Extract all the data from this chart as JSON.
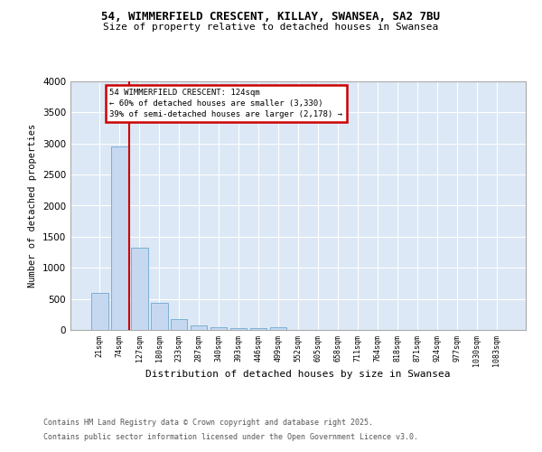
{
  "title1": "54, WIMMERFIELD CRESCENT, KILLAY, SWANSEA, SA2 7BU",
  "title2": "Size of property relative to detached houses in Swansea",
  "xlabel": "Distribution of detached houses by size in Swansea",
  "ylabel": "Number of detached properties",
  "bin_labels": [
    "21sqm",
    "74sqm",
    "127sqm",
    "180sqm",
    "233sqm",
    "287sqm",
    "340sqm",
    "393sqm",
    "446sqm",
    "499sqm",
    "552sqm",
    "605sqm",
    "658sqm",
    "711sqm",
    "764sqm",
    "818sqm",
    "871sqm",
    "924sqm",
    "977sqm",
    "1030sqm",
    "1083sqm"
  ],
  "bar_heights": [
    600,
    2950,
    1330,
    430,
    170,
    80,
    50,
    30,
    25,
    50,
    0,
    0,
    0,
    0,
    0,
    0,
    0,
    0,
    0,
    0,
    0
  ],
  "bar_color": "#c5d8f0",
  "bar_edge_color": "#7bafd4",
  "ylim": [
    0,
    4000
  ],
  "yticks": [
    0,
    500,
    1000,
    1500,
    2000,
    2500,
    3000,
    3500,
    4000
  ],
  "property_line_color": "#cc0000",
  "property_line_x": 1.5,
  "annotation_line1": "54 WIMMERFIELD CRESCENT: 124sqm",
  "annotation_line2": "← 60% of detached houses are smaller (3,330)",
  "annotation_line3": "39% of semi-detached houses are larger (2,178) →",
  "annotation_box_edgecolor": "#cc0000",
  "annotation_box_facecolor": "#ffffff",
  "footer1": "Contains HM Land Registry data © Crown copyright and database right 2025.",
  "footer2": "Contains public sector information licensed under the Open Government Licence v3.0.",
  "plot_bg_color": "#dce8f5",
  "fig_bg_color": "#ffffff",
  "grid_color": "#ffffff",
  "spine_color": "#aaaaaa",
  "ylabel_color": "#000000",
  "tick_color": "#000000"
}
